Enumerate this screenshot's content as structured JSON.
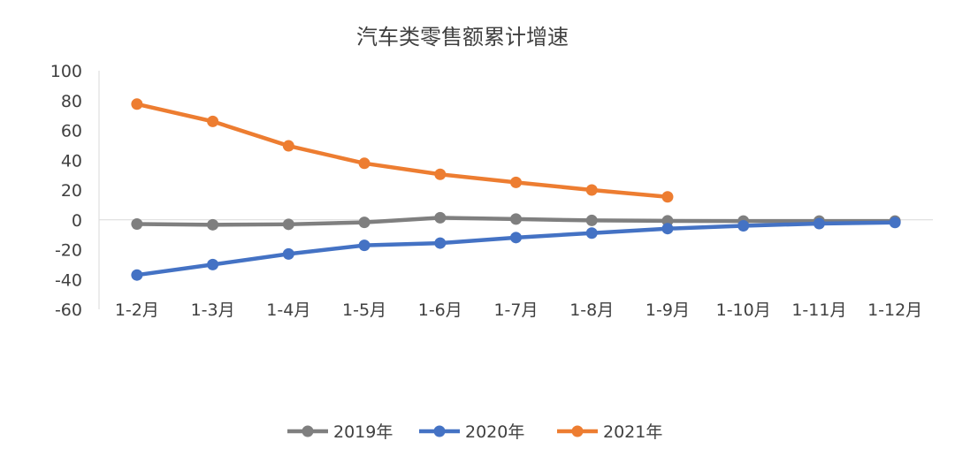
{
  "chart_data": {
    "type": "line",
    "title": "汽车类零售额累计增速",
    "xlabel": "",
    "ylabel": "",
    "categories": [
      "1-2月",
      "1-3月",
      "1-4月",
      "1-5月",
      "1-6月",
      "1-7月",
      "1-8月",
      "1-9月",
      "1-10月",
      "1-11月",
      "1-12月"
    ],
    "y_ticks": [
      "100",
      "80",
      "60",
      "40",
      "20",
      "0",
      "-20",
      "-40",
      "-60"
    ],
    "ylim": [
      -60,
      100
    ],
    "legend_position": "bottom",
    "series": [
      {
        "name": "2019年",
        "color": "#7f7f7f",
        "values": [
          -2.8,
          -3.3,
          -3.0,
          -1.7,
          1.4,
          0.5,
          -0.4,
          -0.7,
          -0.8,
          -0.8,
          -0.8
        ]
      },
      {
        "name": "2020年",
        "color": "#4472c4",
        "values": [
          -37.0,
          -30.0,
          -22.9,
          -17.1,
          -15.6,
          -11.9,
          -8.9,
          -5.9,
          -4.0,
          -2.5,
          -1.8
        ]
      },
      {
        "name": "2021年",
        "color": "#ed7d31",
        "values": [
          77.6,
          66.0,
          49.6,
          37.9,
          30.5,
          25.1,
          20.0,
          15.4,
          null,
          null,
          null
        ]
      }
    ]
  }
}
